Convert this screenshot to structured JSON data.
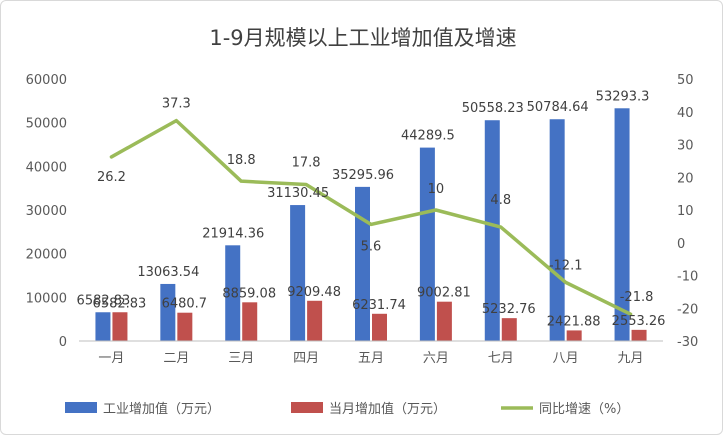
{
  "chart_data": {
    "type": "bar",
    "title": "1-9月规模以上工业增加值及增速",
    "categories": [
      "一月",
      "二月",
      "三月",
      "四月",
      "五月",
      "六月",
      "七月",
      "八月",
      "九月"
    ],
    "series": [
      {
        "name": "工业增加值（万元）",
        "type": "bar",
        "axis": "left",
        "color": "#4472c4",
        "values": [
          6582.83,
          13063.54,
          21914.36,
          31130.45,
          35295.96,
          44289.5,
          50558.23,
          50784.64,
          53293.3
        ],
        "labels": [
          "6582.83",
          "13063.54",
          "21914.36",
          "31130.45",
          "35295.96",
          "44289.5",
          "50558.23",
          "50784.64",
          "53293.3"
        ]
      },
      {
        "name": "当月增加值（万元）",
        "type": "bar",
        "axis": "left",
        "color": "#c0504d",
        "values": [
          6582.83,
          6480.7,
          8859.08,
          9209.48,
          6231.74,
          9002.81,
          5232.76,
          2421.88,
          2553.26
        ],
        "labels": [
          "6582.83",
          "6480.7",
          "8859.08",
          "9209.48",
          "6231.74",
          "9002.81",
          "5232.76",
          "2421.88",
          "2553.26"
        ]
      },
      {
        "name": "同比增速（%）",
        "type": "line",
        "axis": "right",
        "color": "#9bbb59",
        "values": [
          26.2,
          37.3,
          18.8,
          17.8,
          5.6,
          10,
          4.8,
          -12.1,
          -21.8
        ],
        "labels": [
          "26.2",
          "37.3",
          "18.8",
          "17.8",
          "5.6",
          "10",
          "4.8",
          "-12.1",
          "-21.8"
        ]
      }
    ],
    "y_left": {
      "ylim": [
        0,
        60000
      ],
      "ticks": [
        0,
        10000,
        20000,
        30000,
        40000,
        50000,
        60000
      ]
    },
    "y_right": {
      "ylim": [
        -30,
        50
      ],
      "ticks": [
        -30,
        -20,
        -10,
        0,
        10,
        20,
        30,
        40,
        50
      ]
    },
    "grid": false,
    "legend_position": "bottom"
  }
}
